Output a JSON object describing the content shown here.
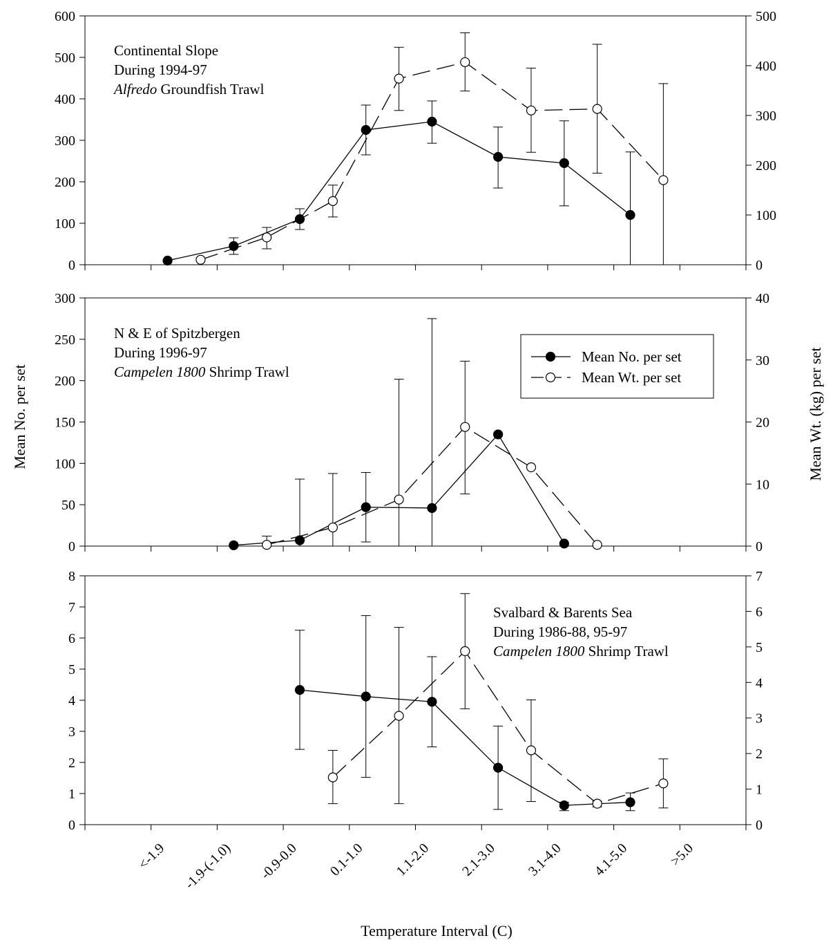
{
  "chart_data": {
    "type": "line",
    "categories": [
      "<-1.9",
      "-1.9-(-1.0)",
      "-0.9-0.0",
      "0.1-1.0",
      "1.1-2.0",
      "2.1-3.0",
      "3.1-4.0",
      "4.1-5.0",
      ">5.0"
    ],
    "xlabel": "Temperature Interval (C)",
    "ylabel_left": "Mean No. per set",
    "ylabel_right": "Mean Wt. (kg) per set",
    "legend": {
      "placement": "right",
      "entries": [
        {
          "label": "Mean No. per set",
          "marker": "filled-circle",
          "line": "solid"
        },
        {
          "label": "Mean Wt. per set",
          "marker": "open-circle",
          "line": "dashed"
        }
      ]
    },
    "panels": [
      {
        "annotation": [
          {
            "parts": [
              {
                "text": "Continental Slope",
                "italic": false
              }
            ]
          },
          {
            "parts": [
              {
                "text": "During 1994-97",
                "italic": false
              }
            ]
          },
          {
            "parts": [
              {
                "text": "Alfredo",
                "italic": true
              },
              {
                "text": " Groundfish Trawl",
                "italic": false
              }
            ]
          }
        ],
        "annotation_anchor": "top-left",
        "left_ylim": [
          0,
          600
        ],
        "left_ticks": [
          "0",
          "100",
          "200",
          "300",
          "400",
          "500",
          "600"
        ],
        "right_ylim": [
          0,
          500
        ],
        "right_ticks": [
          "0",
          "100",
          "200",
          "300",
          "400",
          "500"
        ],
        "series": [
          {
            "name": "Mean No. per set",
            "axis": "left",
            "x": [
              0.25,
              1.25,
              2.25,
              3.25,
              4.25,
              5.25,
              6.25,
              7.25
            ],
            "y": [
              10,
              45,
              110,
              325,
              345,
              260,
              245,
              120
            ],
            "err_low": [
              10,
              25,
              85,
              265,
              293,
              185,
              142,
              0
            ],
            "err_high": [
              10,
              65,
              135,
              385,
              395,
              332,
              347,
              272
            ]
          },
          {
            "name": "Mean Wt. per set",
            "axis": "right",
            "x": [
              0.75,
              1.75,
              2.75,
              3.75,
              4.75,
              5.75,
              6.75,
              7.75
            ],
            "y": [
              10,
              55,
              128,
              374,
              407,
              310,
              313,
              170
            ],
            "err_low": [
              10,
              32,
              96,
              310,
              349,
              226,
              184,
              0
            ],
            "err_high": [
              10,
              75,
              160,
              437,
              466,
              395,
              443,
              364
            ]
          }
        ]
      },
      {
        "annotation": [
          {
            "parts": [
              {
                "text": "N & E of Spitzbergen",
                "italic": false
              }
            ]
          },
          {
            "parts": [
              {
                "text": "During 1996-97",
                "italic": false
              }
            ]
          },
          {
            "parts": [
              {
                "text": "Campelen 1800",
                "italic": true
              },
              {
                "text": " Shrimp Trawl",
                "italic": false
              }
            ]
          }
        ],
        "annotation_anchor": "top-left",
        "left_ylim": [
          0,
          300
        ],
        "left_ticks": [
          "0",
          "50",
          "100",
          "150",
          "200",
          "250",
          "300"
        ],
        "right_ylim": [
          0,
          40
        ],
        "right_ticks": [
          "0",
          "10",
          "20",
          "30",
          "40"
        ],
        "series": [
          {
            "name": "Mean No. per set",
            "axis": "left",
            "x": [
              1.25,
              2.25,
              3.25,
              4.25,
              5.25,
              6.25
            ],
            "y": [
              1,
              7,
              47,
              46,
              135,
              3
            ],
            "err_low": [
              1,
              0,
              5,
              0,
              135,
              3
            ],
            "err_high": [
              1,
              81,
              89,
              275,
              135,
              3
            ]
          },
          {
            "name": "Mean Wt. per set",
            "axis": "right",
            "x": [
              1.75,
              2.75,
              3.75,
              4.75,
              5.75,
              6.75
            ],
            "y": [
              0.2,
              3,
              7.5,
              19.2,
              12.7,
              0.2
            ],
            "err_low": [
              0,
              0,
              0,
              8.4,
              12.7,
              0.2
            ],
            "err_high": [
              1.6,
              11.7,
              26.9,
              29.8,
              12.7,
              0.2
            ]
          }
        ]
      },
      {
        "annotation": [
          {
            "parts": [
              {
                "text": "Svalbard & Barents Sea",
                "italic": false
              }
            ]
          },
          {
            "parts": [
              {
                "text": "During 1986-88, 95-97",
                "italic": false
              }
            ]
          },
          {
            "parts": [
              {
                "text": "Campelen 1800",
                "italic": true
              },
              {
                "text": " Shrimp Trawl",
                "italic": false
              }
            ]
          }
        ],
        "annotation_anchor": "top-right",
        "left_ylim": [
          0,
          8
        ],
        "left_ticks": [
          "0",
          "1",
          "2",
          "3",
          "4",
          "5",
          "6",
          "7",
          "8"
        ],
        "right_ylim": [
          0,
          7
        ],
        "right_ticks": [
          "0",
          "1",
          "2",
          "3",
          "4",
          "5",
          "6",
          "7"
        ],
        "series": [
          {
            "name": "Mean No. per set",
            "axis": "left",
            "x": [
              2.25,
              3.25,
              4.25,
              5.25,
              6.25,
              7.25
            ],
            "y": [
              4.33,
              4.12,
              3.95,
              1.83,
              0.62,
              0.72
            ],
            "err_low": [
              2.42,
              1.52,
              2.5,
              0.49,
              0.45,
              0.45
            ],
            "err_high": [
              6.25,
              6.72,
              5.4,
              3.17,
              0.72,
              1.02
            ]
          },
          {
            "name": "Mean Wt. per set",
            "axis": "right",
            "x": [
              2.75,
              3.75,
              4.75,
              5.75,
              6.75,
              7.75
            ],
            "y": [
              1.33,
              3.06,
              4.88,
              2.09,
              0.59,
              1.16
            ],
            "err_low": [
              0.59,
              0.59,
              3.26,
              0.65,
              0.5,
              0.47
            ],
            "err_high": [
              2.09,
              5.55,
              6.5,
              3.51,
              0.66,
              1.85
            ]
          }
        ]
      }
    ]
  }
}
